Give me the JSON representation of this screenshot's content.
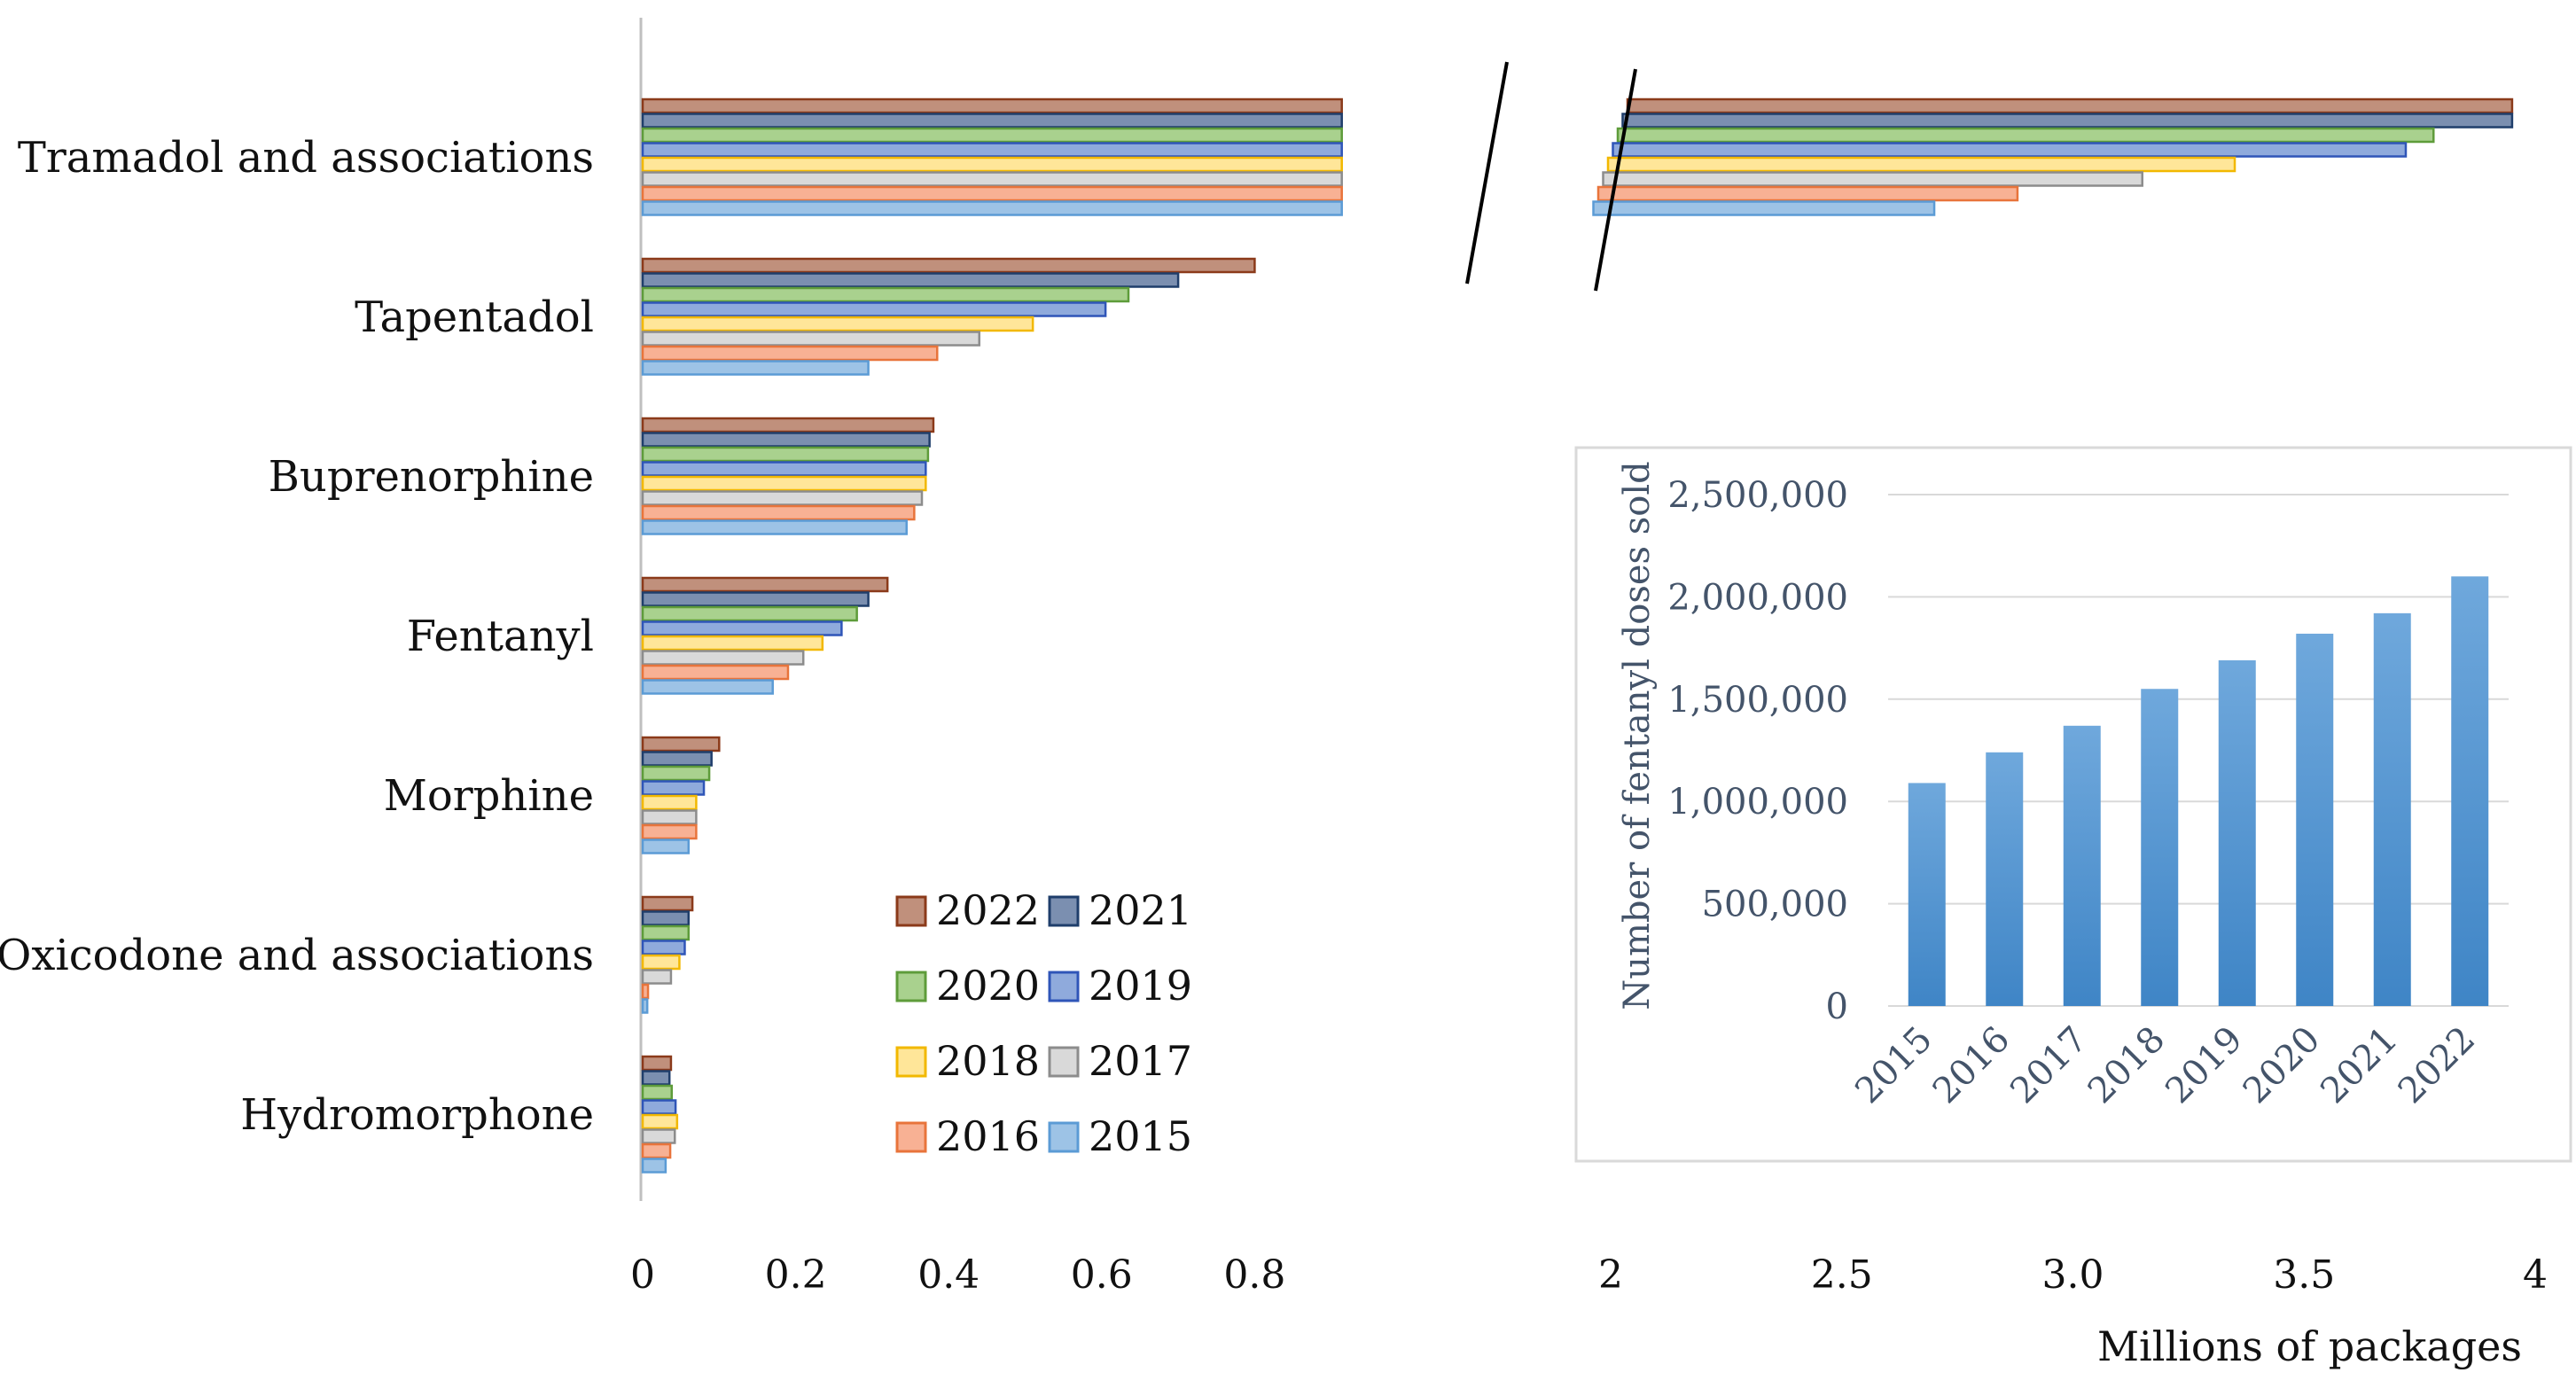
{
  "chart_data": [
    {
      "type": "bar",
      "orientation": "horizontal",
      "title": "",
      "xlabel": "Millions of packages",
      "ylabel": "",
      "axis_break": {
        "from": 0.9,
        "to": 2.0
      },
      "xticks": [
        "0",
        "0.2",
        "0.4",
        "0.6",
        "0.8",
        "2",
        "2.5",
        "3.0",
        "3.5",
        "4"
      ],
      "xlim": [
        0,
        4
      ],
      "grid": false,
      "legend_position": "bottom-center",
      "categories": [
        "Tramadol and associations",
        "Tapentadol",
        "Buprenorphine",
        "Fentanyl",
        "Morphine",
        "Oxicodone and associations",
        "Hydromorphone"
      ],
      "series": [
        {
          "name": "2022",
          "fill": "#c0907c",
          "stroke": "#8b3a1a",
          "values": [
            3.95,
            0.8,
            0.38,
            0.32,
            0.1,
            0.065,
            0.037
          ]
        },
        {
          "name": "2021",
          "fill": "#7b8fb0",
          "stroke": "#1f3e6b",
          "values": [
            3.95,
            0.7,
            0.375,
            0.295,
            0.09,
            0.06,
            0.035
          ]
        },
        {
          "name": "2020",
          "fill": "#a9d18e",
          "stroke": "#5e9c3a",
          "values": [
            3.78,
            0.635,
            0.373,
            0.28,
            0.087,
            0.06,
            0.038
          ]
        },
        {
          "name": "2019",
          "fill": "#8faadc",
          "stroke": "#2f55b8",
          "values": [
            3.72,
            0.605,
            0.37,
            0.26,
            0.08,
            0.055,
            0.043
          ]
        },
        {
          "name": "2018",
          "fill": "#ffe699",
          "stroke": "#f2b800",
          "values": [
            3.35,
            0.51,
            0.37,
            0.235,
            0.07,
            0.048,
            0.045
          ]
        },
        {
          "name": "2017",
          "fill": "#d9d9d9",
          "stroke": "#8c8c8c",
          "values": [
            3.15,
            0.44,
            0.365,
            0.21,
            0.07,
            0.037,
            0.042
          ]
        },
        {
          "name": "2016",
          "fill": "#f8b194",
          "stroke": "#e8743b",
          "values": [
            2.88,
            0.385,
            0.355,
            0.19,
            0.07,
            0.007,
            0.036
          ]
        },
        {
          "name": "2015",
          "fill": "#9dc3e6",
          "stroke": "#5b9bd5",
          "values": [
            2.7,
            0.295,
            0.345,
            0.17,
            0.06,
            0.006,
            0.03
          ]
        }
      ]
    },
    {
      "type": "bar",
      "title": "",
      "xlabel": "",
      "ylabel": "Number of fentanyl doses sold",
      "legend_position": "none",
      "grid": true,
      "ylim": [
        0,
        2500000
      ],
      "yticks": [
        "0",
        "500,000",
        "1,000,000",
        "1,500,000",
        "2,000,000",
        "2,500,000"
      ],
      "categories": [
        "2015",
        "2016",
        "2017",
        "2018",
        "2019",
        "2020",
        "2021",
        "2022"
      ],
      "values": [
        1090000,
        1240000,
        1370000,
        1550000,
        1690000,
        1820000,
        1920000,
        2100000
      ],
      "bar_color": "#5b9bd5"
    }
  ]
}
